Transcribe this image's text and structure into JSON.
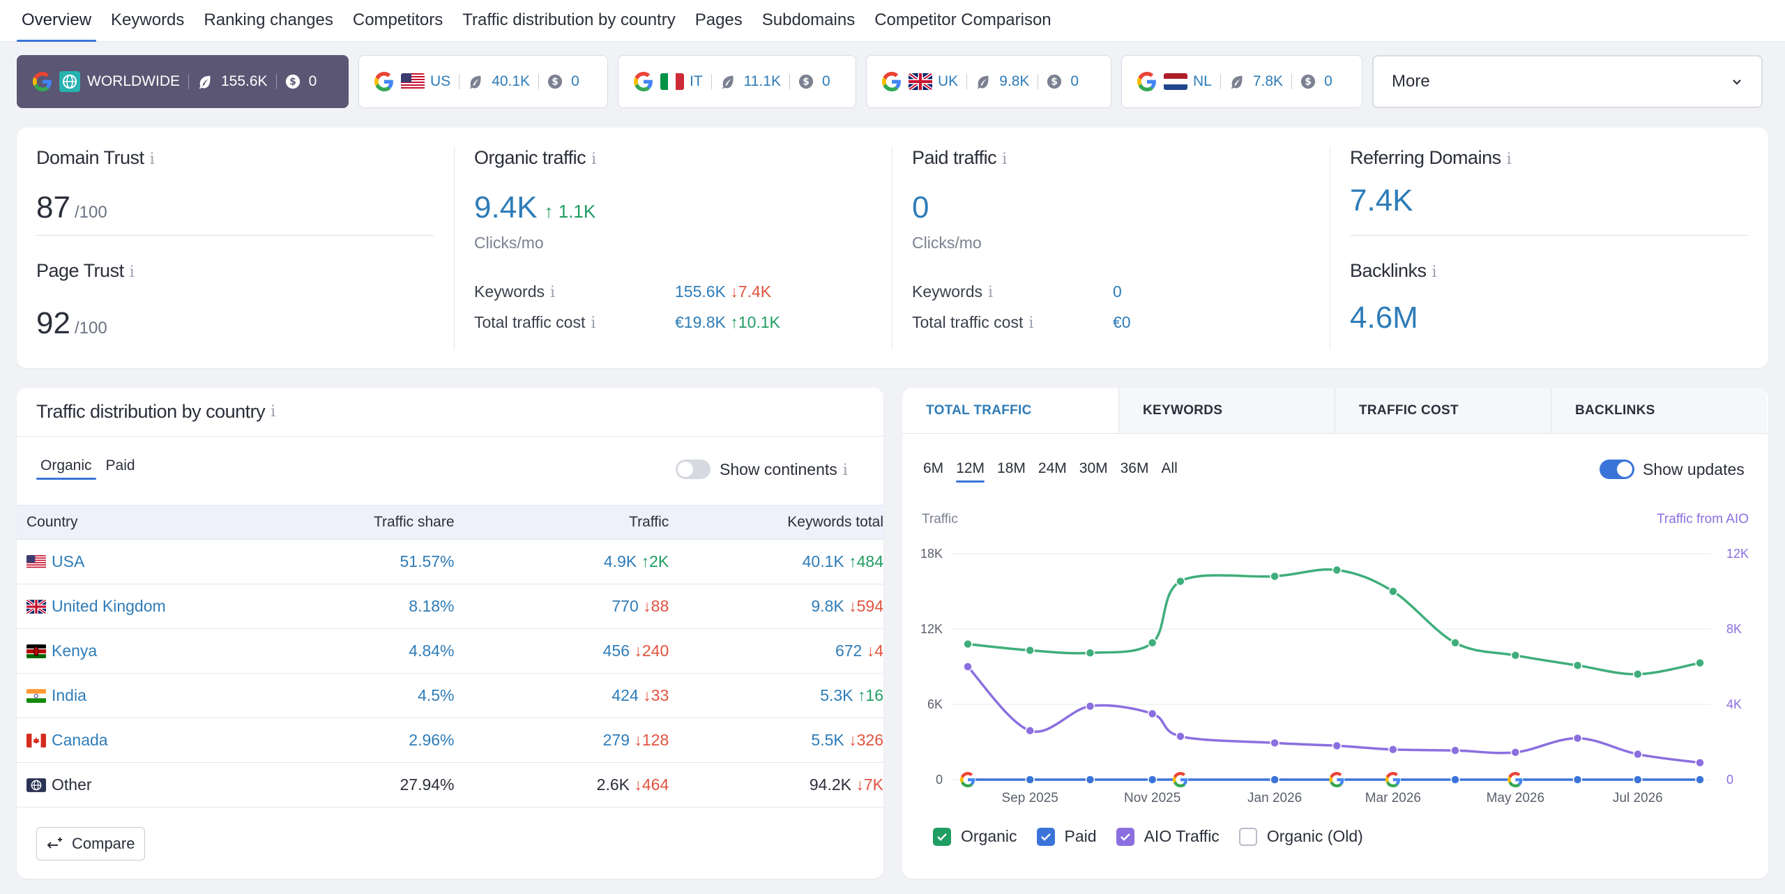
{
  "nav": {
    "tabs": [
      "Overview",
      "Keywords",
      "Ranking changes",
      "Competitors",
      "Traffic distribution by country",
      "Pages",
      "Subdomains",
      "Competitor Comparison"
    ]
  },
  "regions": [
    {
      "label": "WORLDWIDE",
      "keywords": "155.6K",
      "cost": "0"
    },
    {
      "label": "US",
      "keywords": "40.1K",
      "cost": "0"
    },
    {
      "label": "IT",
      "keywords": "11.1K",
      "cost": "0"
    },
    {
      "label": "UK",
      "keywords": "9.8K",
      "cost": "0"
    },
    {
      "label": "NL",
      "keywords": "7.8K",
      "cost": "0"
    }
  ],
  "more_label": "More",
  "metrics": {
    "domain_trust": {
      "title": "Domain Trust",
      "value": "87",
      "denom": "/100"
    },
    "page_trust": {
      "title": "Page Trust",
      "value": "92",
      "denom": "/100"
    },
    "organic": {
      "title": "Organic traffic",
      "value": "9.4K",
      "delta": "1.1K",
      "unit": "Clicks/mo",
      "keywords_label": "Keywords",
      "keywords_value": "155.6K",
      "keywords_delta": "7.4K",
      "cost_label": "Total traffic cost",
      "cost_value": "€19.8K",
      "cost_delta": "10.1K"
    },
    "paid": {
      "title": "Paid traffic",
      "value": "0",
      "unit": "Clicks/mo",
      "keywords_label": "Keywords",
      "keywords_value": "0",
      "cost_label": "Total traffic cost",
      "cost_value": "€0"
    },
    "referring": {
      "title": "Referring Domains",
      "value": "7.4K"
    },
    "backlinks": {
      "title": "Backlinks",
      "value": "4.6M"
    },
    "info_glyph": "i"
  },
  "tdist": {
    "title": "Traffic distribution by country",
    "segments": [
      "Organic",
      "Paid"
    ],
    "show_continents": "Show continents",
    "columns": [
      "Country",
      "Traffic share",
      "Traffic",
      "Keywords total"
    ],
    "rows": [
      {
        "country": "USA",
        "share": "51.57%",
        "traffic": "4.9K",
        "traffic_delta": "2K",
        "traffic_dir": "up",
        "kw": "40.1K",
        "kw_delta": "484",
        "kw_dir": "up"
      },
      {
        "country": "United Kingdom",
        "share": "8.18%",
        "traffic": "770",
        "traffic_delta": "88",
        "traffic_dir": "down",
        "kw": "9.8K",
        "kw_delta": "594",
        "kw_dir": "down"
      },
      {
        "country": "Kenya",
        "share": "4.84%",
        "traffic": "456",
        "traffic_delta": "240",
        "traffic_dir": "down",
        "kw": "672",
        "kw_delta": "4",
        "kw_dir": "down"
      },
      {
        "country": "India",
        "share": "4.5%",
        "traffic": "424",
        "traffic_delta": "33",
        "traffic_dir": "down",
        "kw": "5.3K",
        "kw_delta": "16",
        "kw_dir": "up"
      },
      {
        "country": "Canada",
        "share": "2.96%",
        "traffic": "279",
        "traffic_delta": "128",
        "traffic_dir": "down",
        "kw": "5.5K",
        "kw_delta": "326",
        "kw_dir": "down"
      },
      {
        "country": "Other",
        "share": "27.94%",
        "traffic": "2.6K",
        "traffic_delta": "464",
        "traffic_dir": "down",
        "kw": "94.2K",
        "kw_delta": "7K",
        "kw_dir": "down"
      }
    ],
    "compare_label": "Compare"
  },
  "chart_panel": {
    "tabs": [
      "TOTAL TRAFFIC",
      "KEYWORDS",
      "TRAFFIC COST",
      "BACKLINKS"
    ],
    "ranges": [
      "6M",
      "12M",
      "18M",
      "24M",
      "30M",
      "36M",
      "All"
    ],
    "show_updates": "Show updates",
    "legend": [
      {
        "label": "Organic",
        "checked": true,
        "color": "#1f9d62"
      },
      {
        "label": "Paid",
        "checked": true,
        "color": "#3b74d9"
      },
      {
        "label": "AIO Traffic",
        "checked": true,
        "color": "#8b6fe0"
      },
      {
        "label": "Organic (Old)",
        "checked": false,
        "color": "#ffffff"
      }
    ]
  },
  "chart_data": {
    "type": "line",
    "ylabel": "Traffic",
    "y2label": "Traffic from AIO",
    "ylim": [
      0,
      18000
    ],
    "y2lim": [
      0,
      12000
    ],
    "yticks": [
      "0",
      "6K",
      "12K",
      "18K"
    ],
    "y2ticks": [
      "0",
      "4K",
      "8K",
      "12K"
    ],
    "x_tick_labels": [
      "Sep 2025",
      "Nov 2025",
      "Jan 2026",
      "Mar 2026",
      "May 2026",
      "Jul 2026"
    ],
    "x": [
      "2025-08-01",
      "2025-09-01",
      "2025-10-01",
      "2025-11-01",
      "2025-11-15",
      "2026-01-01",
      "2026-02-01",
      "2026-03-01",
      "2026-04-01",
      "2026-05-01",
      "2026-06-01",
      "2026-07-01",
      "2026-08-01"
    ],
    "series": [
      {
        "name": "Organic",
        "axis": "left",
        "color": "#3fae7a",
        "values": [
          10800,
          10300,
          10100,
          10900,
          15800,
          16200,
          16700,
          15000,
          10900,
          9900,
          9100,
          8400,
          9300
        ]
      },
      {
        "name": "Paid",
        "axis": "left",
        "color": "#3b74d9",
        "values": [
          0,
          0,
          0,
          0,
          0,
          0,
          0,
          0,
          0,
          0,
          0,
          0,
          0
        ]
      },
      {
        "name": "AIO Traffic",
        "axis": "right",
        "color": "#8b6fe0",
        "values": [
          6000,
          2600,
          3900,
          3500,
          2300,
          1950,
          1800,
          1600,
          1550,
          1450,
          2200,
          1350,
          900
        ]
      }
    ],
    "update_markers": [
      "2025-08-01",
      "2025-11-15",
      "2026-02-01",
      "2026-03-01",
      "2026-05-01"
    ],
    "grid": true
  }
}
